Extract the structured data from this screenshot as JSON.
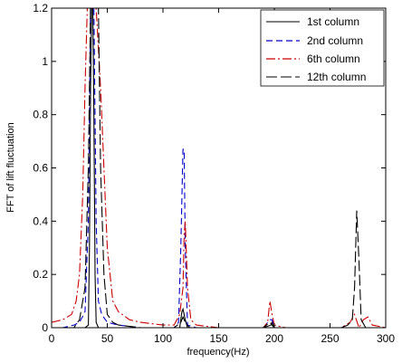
{
  "chart_data": {
    "type": "line",
    "xlabel": "frequency(Hz)",
    "ylabel": "FFT of lift fluctuation",
    "xlim": [
      0,
      300
    ],
    "ylim": [
      0,
      1.2
    ],
    "xticks": [
      0,
      50,
      100,
      150,
      200,
      250,
      300
    ],
    "xtick_labels": [
      "0",
      "50",
      "100",
      "150",
      "200",
      "250",
      "300"
    ],
    "yticks": [
      0,
      0.2,
      0.4,
      0.6,
      0.8,
      1,
      1.2
    ],
    "ytick_labels": [
      "0",
      "0.2",
      "0.4",
      "0.6",
      "0.8",
      "1",
      "1.2"
    ],
    "grid": false,
    "legend_position": "top-right",
    "series": [
      {
        "name": "1st column",
        "color": "#000000",
        "dash": "solid",
        "points": [
          [
            0,
            0.0
          ],
          [
            20,
            0.0
          ],
          [
            30,
            0.0
          ],
          [
            33,
            0.01
          ],
          [
            34,
            0.3
          ],
          [
            35,
            0.9
          ],
          [
            36,
            1.2
          ],
          [
            37,
            1.2
          ],
          [
            38,
            0.8
          ],
          [
            39,
            0.2
          ],
          [
            40,
            0.02
          ],
          [
            42,
            0.0
          ],
          [
            60,
            0.0
          ],
          [
            110,
            0.0
          ],
          [
            115,
            0.0
          ],
          [
            117,
            0.06
          ],
          [
            118,
            0.07
          ],
          [
            120,
            0.03
          ],
          [
            122,
            0.0
          ],
          [
            150,
            0.0
          ],
          [
            190,
            0.0
          ],
          [
            197,
            0.01
          ],
          [
            198,
            0.02
          ],
          [
            200,
            0.0
          ],
          [
            260,
            0.0
          ],
          [
            300,
            0.0
          ]
        ]
      },
      {
        "name": "2nd column",
        "color": "#0000cc",
        "dash": "dashed",
        "points": [
          [
            0,
            0.0
          ],
          [
            10,
            0.0
          ],
          [
            20,
            0.01
          ],
          [
            25,
            0.02
          ],
          [
            30,
            0.06
          ],
          [
            33,
            0.4
          ],
          [
            35,
            1.2
          ],
          [
            38,
            1.2
          ],
          [
            40,
            0.4
          ],
          [
            42,
            0.1
          ],
          [
            45,
            0.05
          ],
          [
            50,
            0.02
          ],
          [
            60,
            0.01
          ],
          [
            80,
            0.0
          ],
          [
            110,
            0.0
          ],
          [
            114,
            0.02
          ],
          [
            116,
            0.3
          ],
          [
            118,
            0.67
          ],
          [
            119,
            0.67
          ],
          [
            120,
            0.3
          ],
          [
            122,
            0.01
          ],
          [
            130,
            0.0
          ],
          [
            150,
            0.0
          ],
          [
            190,
            0.0
          ],
          [
            196,
            0.03
          ],
          [
            198,
            0.03
          ],
          [
            200,
            0.0
          ],
          [
            260,
            0.0
          ],
          [
            300,
            0.0
          ]
        ]
      },
      {
        "name": "6th column",
        "color": "#cc0000",
        "dash": "dashdot",
        "points": [
          [
            0,
            0.02
          ],
          [
            10,
            0.03
          ],
          [
            18,
            0.05
          ],
          [
            22,
            0.1
          ],
          [
            25,
            0.2
          ],
          [
            28,
            0.5
          ],
          [
            30,
            0.9
          ],
          [
            32,
            1.2
          ],
          [
            40,
            1.2
          ],
          [
            44,
            0.9
          ],
          [
            47,
            0.6
          ],
          [
            50,
            0.3
          ],
          [
            55,
            0.1
          ],
          [
            60,
            0.06
          ],
          [
            70,
            0.03
          ],
          [
            80,
            0.02
          ],
          [
            100,
            0.01
          ],
          [
            110,
            0.01
          ],
          [
            115,
            0.05
          ],
          [
            118,
            0.15
          ],
          [
            119,
            0.35
          ],
          [
            120,
            0.4
          ],
          [
            122,
            0.15
          ],
          [
            125,
            0.03
          ],
          [
            130,
            0.01
          ],
          [
            150,
            0.0
          ],
          [
            180,
            0.0
          ],
          [
            190,
            0.0
          ],
          [
            194,
            0.02
          ],
          [
            196,
            0.1
          ],
          [
            198,
            0.05
          ],
          [
            200,
            0.01
          ],
          [
            210,
            0.0
          ],
          [
            260,
            0.0
          ],
          [
            268,
            0.02
          ],
          [
            272,
            0.05
          ],
          [
            276,
            0.0
          ],
          [
            280,
            0.03
          ],
          [
            284,
            0.04
          ],
          [
            288,
            0.01
          ],
          [
            300,
            0.0
          ]
        ]
      },
      {
        "name": "12th column",
        "color": "#000000",
        "dash": "longdash",
        "points": [
          [
            0,
            0.0
          ],
          [
            20,
            0.0
          ],
          [
            25,
            0.03
          ],
          [
            30,
            0.15
          ],
          [
            33,
            0.6
          ],
          [
            35,
            1.2
          ],
          [
            42,
            1.2
          ],
          [
            44,
            0.6
          ],
          [
            47,
            0.2
          ],
          [
            50,
            0.05
          ],
          [
            55,
            0.02
          ],
          [
            60,
            0.01
          ],
          [
            80,
            0.0
          ],
          [
            110,
            0.0
          ],
          [
            116,
            0.02
          ],
          [
            118,
            0.04
          ],
          [
            120,
            0.02
          ],
          [
            124,
            0.0
          ],
          [
            150,
            0.0
          ],
          [
            190,
            0.0
          ],
          [
            196,
            0.02
          ],
          [
            198,
            0.01
          ],
          [
            200,
            0.0
          ],
          [
            260,
            0.0
          ],
          [
            266,
            0.01
          ],
          [
            270,
            0.03
          ],
          [
            272,
            0.15
          ],
          [
            274,
            0.44
          ],
          [
            276,
            0.25
          ],
          [
            278,
            0.03
          ],
          [
            282,
            0.0
          ],
          [
            300,
            0.0
          ]
        ]
      }
    ]
  }
}
